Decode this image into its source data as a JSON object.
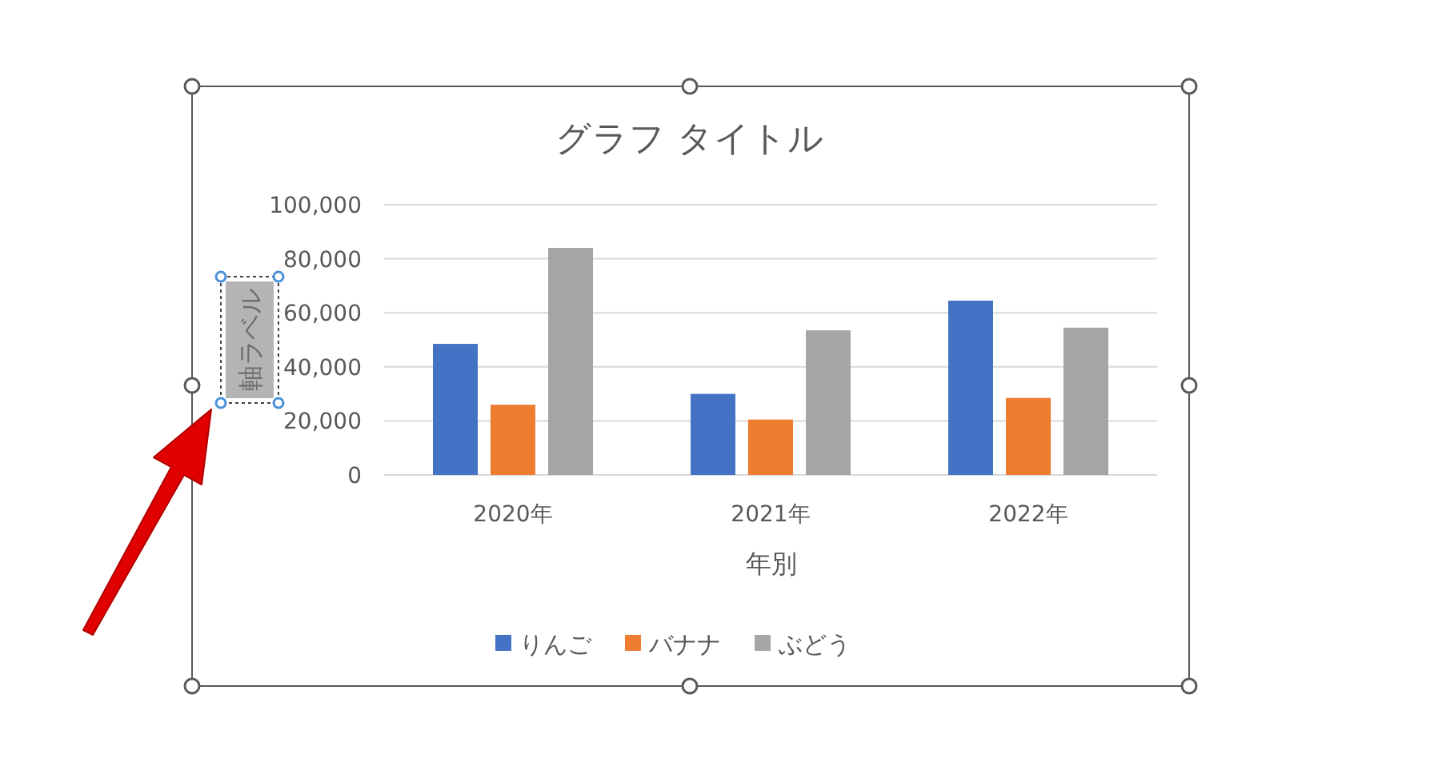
{
  "chart_data": {
    "type": "bar",
    "title": "グラフ タイトル",
    "xlabel": "年別",
    "ylabel": "軸ラベル",
    "categories": [
      "2020年",
      "2021年",
      "2022年"
    ],
    "series": [
      {
        "name": "りんご",
        "color": "#4472c4",
        "values": [
          48500,
          30000,
          64500
        ]
      },
      {
        "name": "バナナ",
        "color": "#ed7d31",
        "values": [
          26000,
          20500,
          28500
        ]
      },
      {
        "name": "ぶどう",
        "color": "#a5a5a5",
        "values": [
          84000,
          53500,
          54500
        ]
      }
    ],
    "ylim": [
      0,
      100000
    ],
    "yticks": [
      {
        "value": 0,
        "label": "0"
      },
      {
        "value": 20000,
        "label": "20,000"
      },
      {
        "value": 40000,
        "label": "40,000"
      },
      {
        "value": 60000,
        "label": "60,000"
      },
      {
        "value": 80000,
        "label": "80,000"
      },
      {
        "value": 100000,
        "label": "100,000"
      }
    ],
    "grid": "y",
    "legend": "bottom"
  }
}
